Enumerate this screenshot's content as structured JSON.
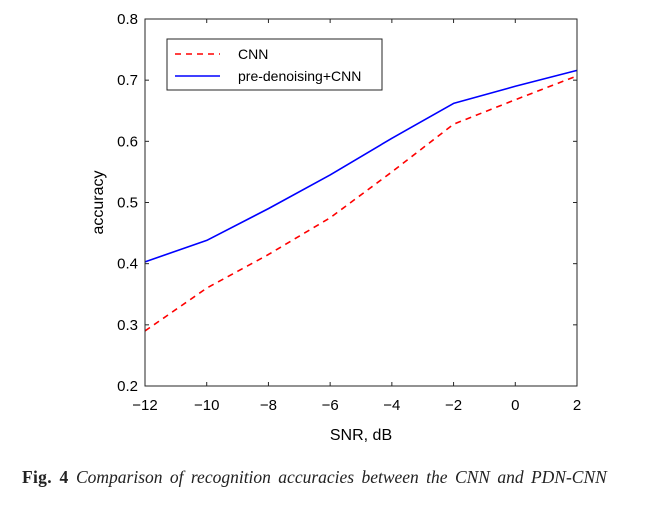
{
  "chart_data": {
    "type": "line",
    "title": "",
    "xlabel": "SNR, dB",
    "ylabel": "accuracy",
    "xlim": [
      -12,
      2
    ],
    "ylim": [
      0.2,
      0.8
    ],
    "x_ticks": [
      -12,
      -10,
      -8,
      -6,
      -4,
      -2,
      0,
      2
    ],
    "x_tick_labels": [
      "−12",
      "−10",
      "−8",
      "−6",
      "−4",
      "−2",
      "0",
      "2"
    ],
    "y_ticks": [
      0.2,
      0.3,
      0.4,
      0.5,
      0.6,
      0.7,
      0.8
    ],
    "y_tick_labels": [
      "0.2",
      "0.3",
      "0.4",
      "0.5",
      "0.6",
      "0.7",
      "0.8"
    ],
    "grid": false,
    "legend_position": "top-left",
    "x": [
      -12,
      -10,
      -8,
      -6,
      -4,
      -2,
      0,
      2
    ],
    "series": [
      {
        "name": "CNN",
        "color": "#ff0000",
        "style": "dashed",
        "values": [
          0.29,
          0.36,
          0.415,
          0.475,
          0.55,
          0.628,
          0.668,
          0.707
        ]
      },
      {
        "name": "pre-denoising+CNN",
        "color": "#0000ff",
        "style": "solid",
        "values": [
          0.403,
          0.438,
          0.49,
          0.545,
          0.605,
          0.662,
          0.69,
          0.716
        ]
      }
    ]
  },
  "caption": {
    "fig_number": "Fig. 4",
    "text": "Comparison of recognition accuracies between the CNN and PDN-CNN"
  }
}
